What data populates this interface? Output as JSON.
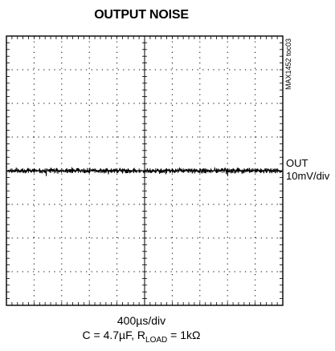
{
  "chart_data": {
    "type": "line",
    "title": "OUTPUT NOISE",
    "subtitle_id": "MAX1452 toc03",
    "series": [
      {
        "name": "OUT",
        "scale": "10mV/div",
        "center_div": 0,
        "noise_pk_pk_div": 0.35
      }
    ],
    "x_div_count": 10,
    "y_div_count": 8,
    "xlabel": "400µs/div",
    "conditions_prefix": "C = 4.7µF, R",
    "conditions_sub": "LOAD",
    "conditions_suffix": " = 1kΩ",
    "grid": true
  }
}
